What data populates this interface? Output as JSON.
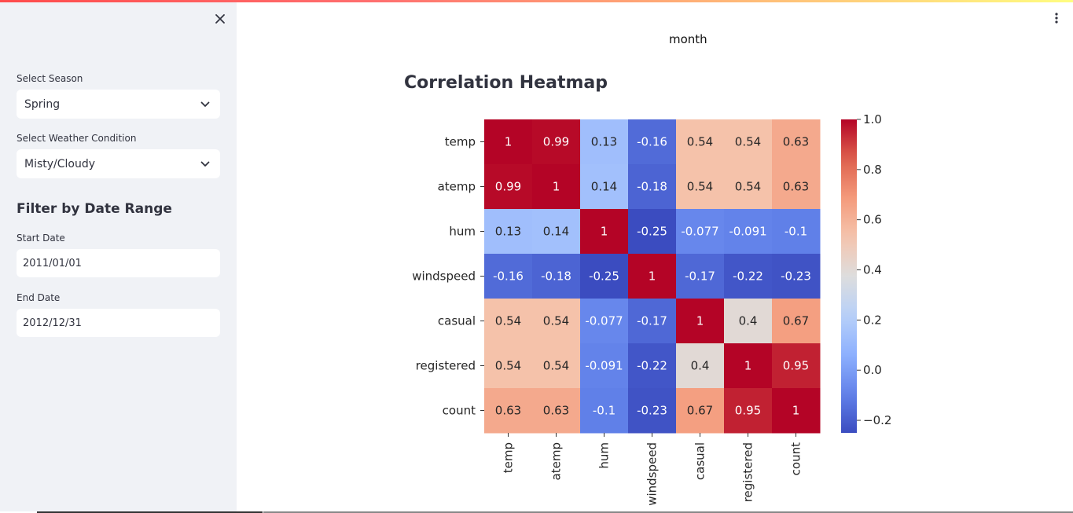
{
  "sidebar": {
    "season": {
      "label": "Select Season",
      "value": "Spring"
    },
    "weather": {
      "label": "Select Weather Condition",
      "value": "Misty/Cloudy"
    },
    "section_title": "Filter by Date Range",
    "start_date": {
      "label": "Start Date",
      "value": "2011/01/01"
    },
    "end_date": {
      "label": "End Date",
      "value": "2012/12/31"
    }
  },
  "main": {
    "caption": "month",
    "title": "Correlation Heatmap"
  },
  "chart_data": {
    "type": "heatmap",
    "title": "",
    "x_labels": [
      "temp",
      "atemp",
      "hum",
      "windspeed",
      "casual",
      "registered",
      "count"
    ],
    "y_labels": [
      "temp",
      "atemp",
      "hum",
      "windspeed",
      "casual",
      "registered",
      "count"
    ],
    "values": [
      [
        1,
        0.99,
        0.13,
        -0.16,
        0.54,
        0.54,
        0.63
      ],
      [
        0.99,
        1,
        0.14,
        -0.18,
        0.54,
        0.54,
        0.63
      ],
      [
        0.13,
        0.14,
        1,
        -0.25,
        -0.077,
        -0.091,
        -0.1
      ],
      [
        -0.16,
        -0.18,
        -0.25,
        1,
        -0.17,
        -0.22,
        -0.23
      ],
      [
        0.54,
        0.54,
        -0.077,
        -0.17,
        1,
        0.4,
        0.67
      ],
      [
        0.54,
        0.54,
        -0.091,
        -0.22,
        0.4,
        1,
        0.95
      ],
      [
        0.63,
        0.63,
        -0.1,
        -0.23,
        0.67,
        0.95,
        1
      ]
    ],
    "colormap": "coolwarm",
    "vmin": -0.25,
    "vmax": 1.0,
    "colorbar_ticks": [
      "1.0",
      "0.8",
      "0.6",
      "0.4",
      "0.2",
      "0.0",
      "−0.2"
    ],
    "colorbar_tick_values": [
      1.0,
      0.8,
      0.6,
      0.4,
      0.2,
      0.0,
      -0.2
    ]
  }
}
